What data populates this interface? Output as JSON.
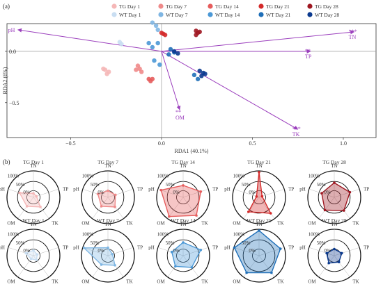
{
  "panel_a_label": "(a)",
  "panel_b_label": "(b)",
  "colors": {
    "TG Day 1": "#f5b7b7",
    "TG Day 7": "#ef8a8a",
    "TG Day 14": "#e65c5c",
    "TG Day 21": "#d42a2a",
    "TG Day 28": "#9e1620",
    "WT Day 1": "#c9def2",
    "WT Day 7": "#7fb6e3",
    "WT Day 14": "#4b98d6",
    "WT Day 21": "#1f6fb8",
    "WT Day 28": "#0b3a8f",
    "arrow": "#9b3fbd"
  },
  "chart_data": [
    {
      "type": "scatter",
      "title": "",
      "xlabel": "RDA1 (40.1%)",
      "ylabel": "RDA2 (6%)",
      "xlim": [
        -0.85,
        1.18
      ],
      "ylim": [
        -0.84,
        0.27
      ],
      "xticks": [
        "−0.5",
        "0.0",
        "0.5",
        "1.0"
      ],
      "yticks": [
        "0.0",
        "−0.5"
      ],
      "legend": [
        "TG Day 1",
        "TG Day 7",
        "TG Day 14",
        "TG Day 21",
        "TG Day 28",
        "WT Day 1",
        "WT Day 7",
        "WT Day 14",
        "WT Day 21",
        "WT Day 28"
      ],
      "legend_position": "top",
      "series": [
        {
          "name": "TG Day 1",
          "points": [
            [
              -0.32,
              -0.17
            ],
            [
              -0.31,
              -0.18
            ],
            [
              -0.29,
              -0.2
            ],
            [
              -0.3,
              -0.22
            ]
          ]
        },
        {
          "name": "TG Day 7",
          "points": [
            [
              -0.13,
              -0.14
            ],
            [
              -0.12,
              -0.17
            ],
            [
              -0.14,
              -0.18
            ],
            [
              -0.11,
              -0.2
            ]
          ]
        },
        {
          "name": "TG Day 14",
          "points": [
            [
              -0.07,
              -0.27
            ],
            [
              -0.06,
              -0.29
            ],
            [
              -0.05,
              -0.27
            ]
          ]
        },
        {
          "name": "TG Day 21",
          "points": [
            [
              0.0,
              0.18
            ],
            [
              0.01,
              0.17
            ],
            [
              0.02,
              0.16
            ]
          ]
        },
        {
          "name": "TG Day 28",
          "points": [
            [
              0.19,
              0.2
            ],
            [
              0.2,
              0.18
            ],
            [
              0.19,
              0.16
            ],
            [
              0.21,
              0.19
            ]
          ]
        },
        {
          "name": "WT Day 1",
          "points": [
            [
              -0.23,
              0.09
            ],
            [
              -0.22,
              0.07
            ]
          ]
        },
        {
          "name": "WT Day 7",
          "points": [
            [
              -0.05,
              0.28
            ],
            [
              -0.03,
              0.25
            ],
            [
              -0.02,
              0.21
            ]
          ]
        },
        {
          "name": "WT Day 14",
          "points": [
            [
              -0.07,
              0.08
            ],
            [
              -0.05,
              0.04
            ],
            [
              -0.02,
              0.08
            ],
            [
              -0.04,
              -0.09
            ],
            [
              -0.01,
              -0.13
            ]
          ]
        },
        {
          "name": "WT Day 21",
          "points": [
            [
              0.05,
              0.02
            ],
            [
              0.07,
              -0.01
            ],
            [
              0.04,
              -0.03
            ],
            [
              0.18,
              -0.23
            ],
            [
              0.2,
              -0.27
            ]
          ]
        },
        {
          "name": "WT Day 28",
          "points": [
            [
              0.07,
              0.0
            ],
            [
              0.09,
              -0.02
            ],
            [
              0.21,
              -0.19
            ],
            [
              0.23,
              -0.21
            ],
            [
              0.22,
              -0.24
            ],
            [
              0.24,
              -0.22
            ]
          ]
        }
      ],
      "vectors": [
        {
          "label": "pH",
          "significance": "",
          "x": -0.79,
          "y": 0.21
        },
        {
          "label": "TN",
          "significance": "***",
          "x": 1.06,
          "y": 0.19
        },
        {
          "label": "TP",
          "significance": "**",
          "x": 0.82,
          "y": 0.0
        },
        {
          "label": "OM",
          "significance": "**",
          "x": 0.1,
          "y": -0.57
        },
        {
          "label": "TK",
          "significance": "***",
          "x": 0.75,
          "y": -0.76
        }
      ]
    },
    {
      "type": "radar",
      "axes": [
        "TN",
        "TP",
        "TK",
        "OM",
        "pH"
      ],
      "ring_labels": [
        "100%",
        "50%",
        "0%"
      ],
      "panels": [
        {
          "title": "TG Day 1",
          "group": "TG Day 1",
          "values": [
            0.15,
            0.12,
            0.45,
            0.42,
            0.55
          ]
        },
        {
          "title": "TG Day 7",
          "group": "TG Day 7",
          "values": [
            0.25,
            0.3,
            0.45,
            0.42,
            0.4
          ]
        },
        {
          "title": "TG Day 14",
          "group": "TG Day 14",
          "values": [
            0.45,
            0.7,
            0.85,
            0.9,
            0.88
          ]
        },
        {
          "title": "TG Day 21",
          "group": "TG Day 21",
          "values": [
            0.95,
            0.12,
            0.75,
            0.68,
            0.1
          ]
        },
        {
          "title": "TG Day 28",
          "group": "TG Day 28",
          "values": [
            0.55,
            0.62,
            0.62,
            0.6,
            0.5
          ]
        },
        {
          "title": "WT Day 1",
          "group": "WT Day 1",
          "values": [
            0.2,
            0.15,
            0.2,
            0.15,
            0.3
          ]
        },
        {
          "title": "WT Day 7",
          "group": "WT Day 7",
          "values": [
            0.3,
            0.18,
            0.45,
            0.42,
            0.95
          ]
        },
        {
          "title": "WT Day 14",
          "group": "WT Day 14",
          "values": [
            0.5,
            0.7,
            0.55,
            0.5,
            0.45
          ]
        },
        {
          "title": "WT Day 21",
          "group": "WT Day 21",
          "values": [
            0.95,
            0.85,
            0.8,
            0.8,
            0.98
          ]
        },
        {
          "title": "WT Day 28",
          "group": "WT Day 28",
          "values": [
            0.25,
            0.3,
            0.3,
            0.35,
            0.3
          ]
        }
      ]
    }
  ]
}
